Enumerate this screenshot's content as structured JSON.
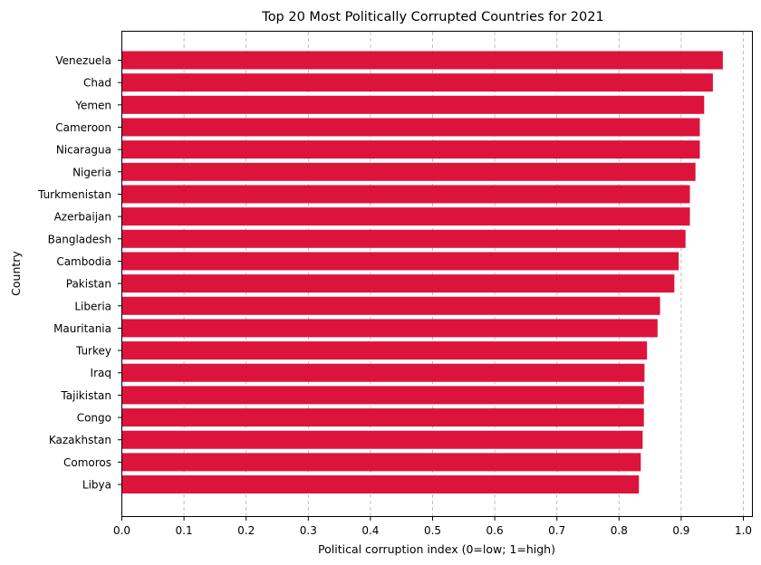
{
  "chart_data": {
    "type": "bar",
    "orientation": "horizontal",
    "title": "Top 20 Most Politically Corrupted Countries for 2021",
    "xlabel": "Political corruption index (0=low; 1=high)",
    "ylabel": "Country",
    "categories": [
      "Venezuela",
      "Chad",
      "Yemen",
      "Cameroon",
      "Nicaragua",
      "Nigeria",
      "Turkmenistan",
      "Azerbaijan",
      "Bangladesh",
      "Cambodia",
      "Pakistan",
      "Liberia",
      "Mauritania",
      "Turkey",
      "Iraq",
      "Tajikistan",
      "Congo",
      "Kazakhstan",
      "Comoros",
      "Libya"
    ],
    "values": [
      0.967,
      0.951,
      0.937,
      0.93,
      0.93,
      0.923,
      0.914,
      0.914,
      0.907,
      0.896,
      0.889,
      0.866,
      0.862,
      0.845,
      0.841,
      0.84,
      0.84,
      0.838,
      0.835,
      0.832
    ],
    "xlim": [
      0.0,
      1.0
    ],
    "xticks": [
      "0.0",
      "0.1",
      "0.2",
      "0.3",
      "0.4",
      "0.5",
      "0.6",
      "0.7",
      "0.8",
      "0.9",
      "1.0"
    ],
    "grid": "x-dashed",
    "bar_color": "#dc143c"
  }
}
